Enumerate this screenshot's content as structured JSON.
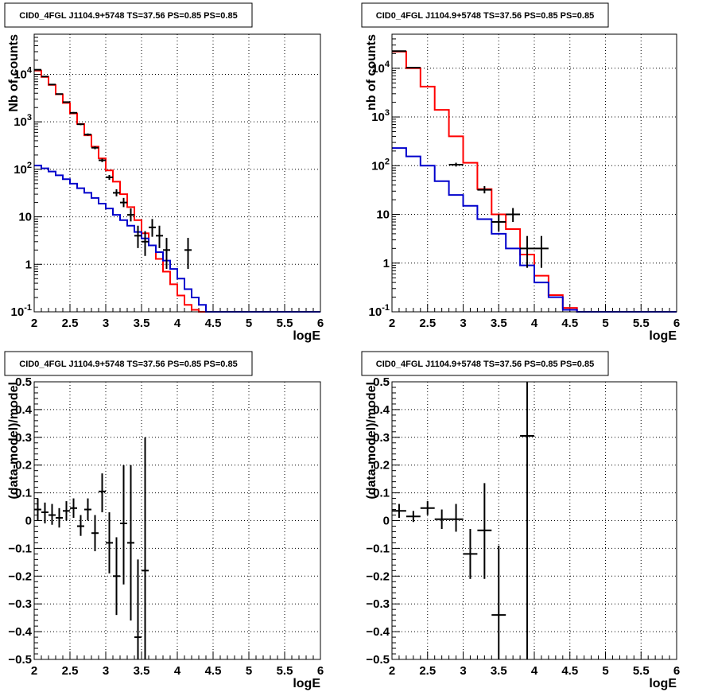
{
  "chart_data": [
    {
      "type": "line",
      "title": "CID0_4FGL J1104.9+5748 TS=37.56 PS=0.85 PS=0.85",
      "xlabel": "logE",
      "ylabel": "Nb of counts",
      "xlim": [
        2,
        6
      ],
      "ylim": [
        0.1,
        70000
      ],
      "yscale": "log",
      "grid": true,
      "xticks": [
        "2",
        "2.5",
        "3",
        "3.5",
        "4",
        "4.5",
        "5",
        "5.5",
        "6"
      ],
      "yticks": [
        {
          "v": 0.1,
          "base": "10",
          "exp": "-1"
        },
        {
          "v": 1,
          "label": "1"
        },
        {
          "v": 10,
          "label": "10"
        },
        {
          "v": 100,
          "base": "10",
          "exp": "2"
        },
        {
          "v": 1000,
          "base": "10",
          "exp": "3"
        },
        {
          "v": 10000,
          "base": "10",
          "exp": "4"
        }
      ],
      "bin_edges": [
        2,
        2.1,
        2.2,
        2.3,
        2.4,
        2.5,
        2.6,
        2.7,
        2.8,
        2.9,
        3.0,
        3.1,
        3.2,
        3.3,
        3.4,
        3.5,
        3.6,
        3.7,
        3.8,
        3.9,
        4.0,
        4.1,
        4.2,
        4.3,
        4.4,
        4.5,
        4.6,
        4.7,
        4.8,
        4.9,
        5.0,
        5.1,
        5.2,
        5.3,
        5.4,
        5.5,
        5.6,
        5.7,
        5.8,
        5.9,
        6.0
      ],
      "series": [
        {
          "color": "#ff0000",
          "step": true,
          "values": [
            12000,
            8800,
            6000,
            3800,
            2500,
            1500,
            900,
            520,
            300,
            170,
            95,
            55,
            30,
            16,
            8.5,
            4.5,
            2.5,
            1.3,
            0.7,
            0.38,
            0.22,
            0.14,
            0.11,
            0.1,
            0.1,
            0.1,
            0.1,
            0.1,
            0.1,
            0.1,
            0.1,
            0.1,
            0.1,
            0.1,
            0.1,
            0.1,
            0.1,
            0.1,
            0.1,
            0.1
          ]
        },
        {
          "color": "#0000cc",
          "step": true,
          "values": [
            120,
            105,
            90,
            75,
            62,
            50,
            40,
            32,
            25,
            19,
            15,
            11,
            8.5,
            6.5,
            4.8,
            3.5,
            2.5,
            1.8,
            1.2,
            0.8,
            0.5,
            0.3,
            0.2,
            0.14,
            0.1,
            0.1,
            0.1,
            0.1,
            0.1,
            0.1,
            0.1,
            0.1,
            0.1,
            0.1,
            0.1,
            0.1,
            0.1,
            0.1,
            0.1,
            0.1
          ]
        }
      ],
      "points": [
        {
          "x": 2.05,
          "y": 12500,
          "ylo": 12300,
          "yhi": 12700
        },
        {
          "x": 2.15,
          "y": 9000,
          "ylo": 8850,
          "yhi": 9150
        },
        {
          "x": 2.25,
          "y": 6100,
          "ylo": 5980,
          "yhi": 6220
        },
        {
          "x": 2.35,
          "y": 3850,
          "ylo": 3760,
          "yhi": 3940
        },
        {
          "x": 2.45,
          "y": 2600,
          "ylo": 2520,
          "yhi": 2680
        },
        {
          "x": 2.55,
          "y": 1550,
          "ylo": 1490,
          "yhi": 1610
        },
        {
          "x": 2.65,
          "y": 890,
          "ylo": 850,
          "yhi": 930
        },
        {
          "x": 2.75,
          "y": 540,
          "ylo": 510,
          "yhi": 570
        },
        {
          "x": 2.85,
          "y": 285,
          "ylo": 265,
          "yhi": 305
        },
        {
          "x": 2.95,
          "y": 155,
          "ylo": 142,
          "yhi": 168
        },
        {
          "x": 3.05,
          "y": 68,
          "ylo": 60,
          "yhi": 76
        },
        {
          "x": 3.15,
          "y": 32,
          "ylo": 27,
          "yhi": 38
        },
        {
          "x": 3.25,
          "y": 20,
          "ylo": 16,
          "yhi": 25
        },
        {
          "x": 3.35,
          "y": 11,
          "ylo": 8,
          "yhi": 15
        },
        {
          "x": 3.45,
          "y": 4,
          "ylo": 2.2,
          "yhi": 6.5
        },
        {
          "x": 3.55,
          "y": 3,
          "ylo": 1.5,
          "yhi": 5
        },
        {
          "x": 3.65,
          "y": 6,
          "ylo": 3.8,
          "yhi": 9
        },
        {
          "x": 3.75,
          "y": 4,
          "ylo": 2.2,
          "yhi": 6.5
        },
        {
          "x": 3.85,
          "y": 2,
          "ylo": 0.8,
          "yhi": 3.6
        },
        {
          "x": 4.15,
          "y": 2,
          "ylo": 0.8,
          "yhi": 3.6
        }
      ]
    },
    {
      "type": "line",
      "title": "CID0_4FGL J1104.9+5748 TS=37.56 PS=0.85 PS=0.85",
      "xlabel": "logE",
      "ylabel": "nb of counts",
      "xlim": [
        2,
        6
      ],
      "ylim": [
        0.1,
        50000
      ],
      "yscale": "log",
      "grid": true,
      "xticks": [
        "2",
        "2.5",
        "3",
        "3.5",
        "4",
        "4.5",
        "5",
        "5.5",
        "6"
      ],
      "yticks": [
        {
          "v": 0.1,
          "base": "10",
          "exp": "-1"
        },
        {
          "v": 1,
          "label": "1"
        },
        {
          "v": 10,
          "label": "10"
        },
        {
          "v": 100,
          "base": "10",
          "exp": "2"
        },
        {
          "v": 1000,
          "base": "10",
          "exp": "3"
        },
        {
          "v": 10000,
          "base": "10",
          "exp": "4"
        }
      ],
      "bin_edges": [
        2,
        2.2,
        2.4,
        2.6,
        2.8,
        3.0,
        3.2,
        3.4,
        3.6,
        3.8,
        4.0,
        4.2,
        4.4,
        4.6,
        4.8,
        5.0,
        5.2,
        5.4,
        5.6,
        5.8,
        6.0
      ],
      "series": [
        {
          "color": "#ff0000",
          "step": true,
          "values": [
            22000,
            10000,
            4200,
            1400,
            400,
            115,
            33,
            10,
            5,
            1.5,
            0.55,
            0.22,
            0.12,
            0.1,
            0.1,
            0.1,
            0.1,
            0.1,
            0.1,
            0.1
          ]
        },
        {
          "color": "#0000cc",
          "step": true,
          "values": [
            230,
            155,
            100,
            48,
            25,
            15,
            8,
            4,
            2,
            0.9,
            0.4,
            0.2,
            0.11,
            0.1,
            0.1,
            0.1,
            0.1,
            0.1,
            0.1,
            0.1
          ]
        }
      ],
      "points": [
        {
          "x": 2.1,
          "y": 22500,
          "ylo": 22300,
          "yhi": 22700
        },
        {
          "x": 2.3,
          "y": 10300,
          "ylo": 10150,
          "yhi": 10450
        },
        {
          "x": 2.9,
          "y": 105,
          "ylo": 96,
          "yhi": 115
        },
        {
          "x": 3.3,
          "y": 32,
          "ylo": 27,
          "yhi": 38
        },
        {
          "x": 3.5,
          "y": 7,
          "ylo": 4.5,
          "yhi": 10
        },
        {
          "x": 3.7,
          "y": 10,
          "ylo": 7,
          "yhi": 13.5
        },
        {
          "x": 3.9,
          "y": 2,
          "ylo": 0.8,
          "yhi": 3.6
        },
        {
          "x": 4.1,
          "y": 2,
          "ylo": 0.8,
          "yhi": 3.6
        }
      ]
    },
    {
      "type": "scatter",
      "title": "CID0_4FGL J1104.9+5748 TS=37.56 PS=0.85 PS=0.85",
      "xlabel": "logE",
      "ylabel": "(data-model)/model",
      "xlim": [
        2,
        6
      ],
      "ylim": [
        -0.5,
        0.5
      ],
      "yscale": "linear",
      "grid": true,
      "xticks": [
        "2",
        "2.5",
        "3",
        "3.5",
        "4",
        "4.5",
        "5",
        "5.5",
        "6"
      ],
      "yticks": [
        {
          "v": -0.5,
          "label": "−0.5"
        },
        {
          "v": -0.4,
          "label": "−0.4"
        },
        {
          "v": -0.3,
          "label": "−0.3"
        },
        {
          "v": -0.2,
          "label": "−0.2"
        },
        {
          "v": -0.1,
          "label": "−0.1"
        },
        {
          "v": 0,
          "label": "0"
        },
        {
          "v": 0.1,
          "label": "0.1"
        },
        {
          "v": 0.2,
          "label": "0.2"
        },
        {
          "v": 0.3,
          "label": "0.3"
        },
        {
          "v": 0.4,
          "label": "0.4"
        },
        {
          "v": 0.5,
          "label": "0.5"
        }
      ],
      "xhalf": 0.05,
      "points": [
        {
          "x": 2.05,
          "y": 0.04,
          "ylo": 0.0,
          "yhi": 0.08
        },
        {
          "x": 2.15,
          "y": 0.03,
          "ylo": -0.01,
          "yhi": 0.065
        },
        {
          "x": 2.25,
          "y": 0.02,
          "ylo": -0.015,
          "yhi": 0.06
        },
        {
          "x": 2.35,
          "y": 0.01,
          "ylo": -0.025,
          "yhi": 0.045
        },
        {
          "x": 2.45,
          "y": 0.035,
          "ylo": 0.0,
          "yhi": 0.07
        },
        {
          "x": 2.55,
          "y": 0.045,
          "ylo": 0.01,
          "yhi": 0.08
        },
        {
          "x": 2.65,
          "y": -0.02,
          "ylo": -0.055,
          "yhi": 0.02
        },
        {
          "x": 2.75,
          "y": 0.04,
          "ylo": 0.0,
          "yhi": 0.08
        },
        {
          "x": 2.85,
          "y": -0.045,
          "ylo": -0.11,
          "yhi": 0.02
        },
        {
          "x": 2.95,
          "y": 0.105,
          "ylo": 0.03,
          "yhi": 0.17
        },
        {
          "x": 3.05,
          "y": -0.08,
          "ylo": -0.19,
          "yhi": 0.03
        },
        {
          "x": 3.15,
          "y": -0.2,
          "ylo": -0.34,
          "yhi": -0.06
        },
        {
          "x": 3.25,
          "y": -0.01,
          "ylo": -0.23,
          "yhi": 0.2
        },
        {
          "x": 3.35,
          "y": -0.08,
          "ylo": -0.36,
          "yhi": 0.2
        },
        {
          "x": 3.45,
          "y": -0.42,
          "ylo": -0.5,
          "yhi": -0.14
        },
        {
          "x": 3.55,
          "y": -0.18,
          "ylo": -0.5,
          "yhi": 0.3
        }
      ]
    },
    {
      "type": "scatter",
      "title": "CID0_4FGL J1104.9+5748 TS=37.56 PS=0.85 PS=0.85",
      "xlabel": "logE",
      "ylabel": "(data-model)/model",
      "xlim": [
        2,
        6
      ],
      "ylim": [
        -0.5,
        0.5
      ],
      "yscale": "linear",
      "grid": true,
      "xticks": [
        "2",
        "2.5",
        "3",
        "3.5",
        "4",
        "4.5",
        "5",
        "5.5",
        "6"
      ],
      "yticks": [
        {
          "v": -0.5,
          "label": "−0.5"
        },
        {
          "v": -0.4,
          "label": "−0.4"
        },
        {
          "v": -0.3,
          "label": "−0.3"
        },
        {
          "v": -0.2,
          "label": "−0.2"
        },
        {
          "v": -0.1,
          "label": "−0.1"
        },
        {
          "v": 0,
          "label": "0"
        },
        {
          "v": 0.1,
          "label": "0.1"
        },
        {
          "v": 0.2,
          "label": "0.2"
        },
        {
          "v": 0.3,
          "label": "0.3"
        },
        {
          "v": 0.4,
          "label": "0.4"
        },
        {
          "v": 0.5,
          "label": "0.5"
        }
      ],
      "xhalf": 0.1,
      "points": [
        {
          "x": 2.1,
          "y": 0.035,
          "ylo": 0.01,
          "yhi": 0.06
        },
        {
          "x": 2.3,
          "y": 0.015,
          "ylo": -0.005,
          "yhi": 0.035
        },
        {
          "x": 2.5,
          "y": 0.045,
          "ylo": 0.02,
          "yhi": 0.07
        },
        {
          "x": 2.7,
          "y": 0.005,
          "ylo": -0.03,
          "yhi": 0.04
        },
        {
          "x": 2.9,
          "y": 0.005,
          "ylo": -0.04,
          "yhi": 0.06
        },
        {
          "x": 3.1,
          "y": -0.12,
          "ylo": -0.21,
          "yhi": -0.03
        },
        {
          "x": 3.3,
          "y": -0.035,
          "ylo": -0.21,
          "yhi": 0.135
        },
        {
          "x": 3.5,
          "y": -0.34,
          "ylo": -0.5,
          "yhi": -0.09
        },
        {
          "x": 3.9,
          "y": 0.305,
          "ylo": -0.5,
          "yhi": 0.5
        }
      ]
    }
  ]
}
